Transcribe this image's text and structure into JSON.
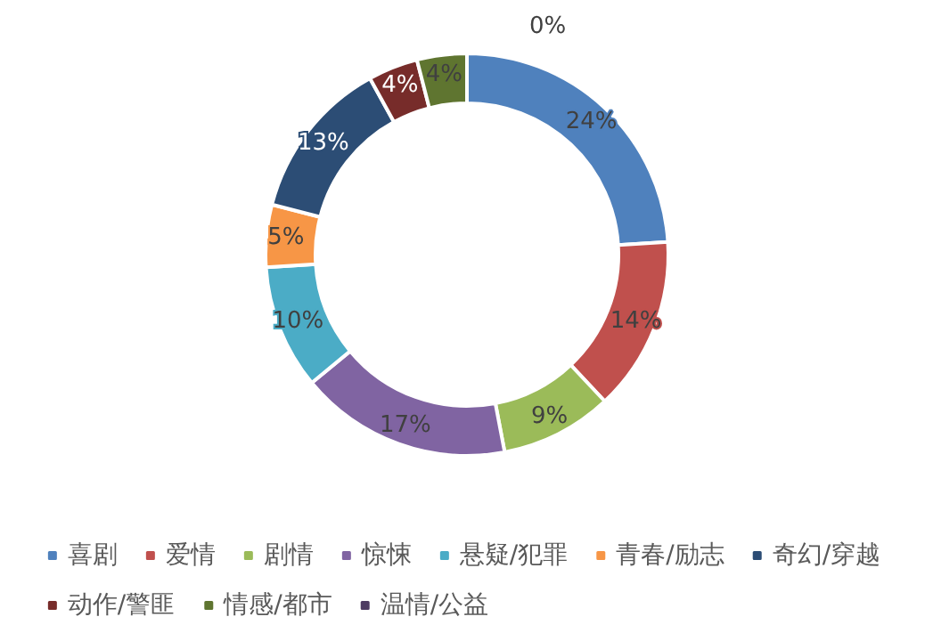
{
  "chart_data": {
    "type": "donut",
    "categories": [
      "喜剧",
      "爱情",
      "剧情",
      "惊悚",
      "悬疑/犯罪",
      "青春/励志",
      "奇幻/穿越",
      "动作/警匪",
      "情感/都市",
      "温情/公益"
    ],
    "values": [
      24,
      14,
      9,
      17,
      10,
      5,
      13,
      4,
      4,
      0
    ],
    "colors": [
      "#4f81bd",
      "#c0504d",
      "#9bbb59",
      "#8064a2",
      "#4bacc6",
      "#f79646",
      "#2c4d75",
      "#772c2a",
      "#5f7530",
      "#4d3b62"
    ],
    "value_labels": [
      "24%",
      "14%",
      "9%",
      "17%",
      "10%",
      "5%",
      "13%",
      "4%",
      "4%",
      "0%"
    ],
    "legend": "bottom"
  }
}
